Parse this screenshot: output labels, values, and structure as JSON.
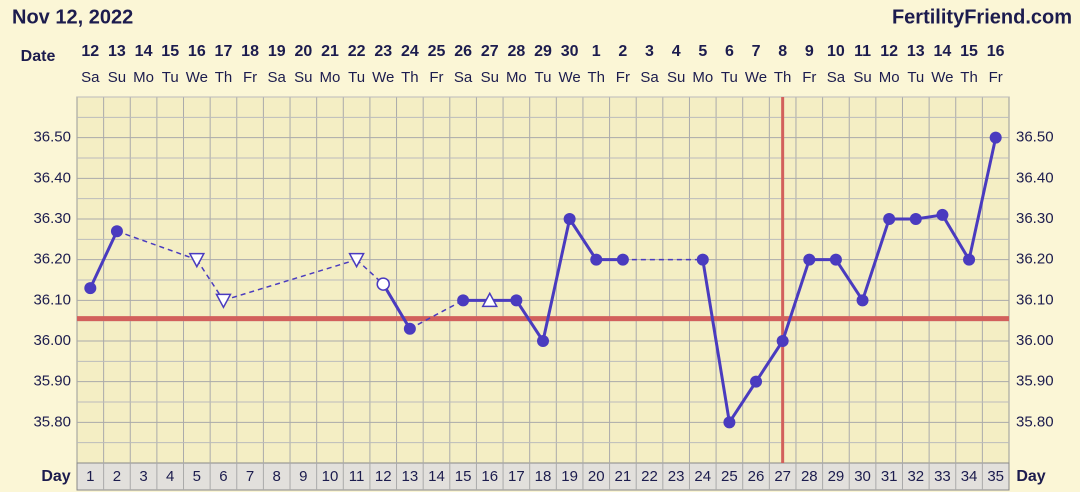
{
  "header": {
    "date": "Nov 12, 2022",
    "site": "FertilityFriend.com"
  },
  "chart_data": {
    "type": "line",
    "date_label": "Date",
    "day_label": "Day",
    "categories": [
      1,
      2,
      3,
      4,
      5,
      6,
      7,
      8,
      9,
      10,
      11,
      12,
      13,
      14,
      15,
      16,
      17,
      18,
      19,
      20,
      21,
      22,
      23,
      24,
      25,
      26,
      27,
      28,
      29,
      30,
      31,
      32,
      33,
      34,
      35
    ],
    "dates": [
      12,
      13,
      14,
      15,
      16,
      17,
      18,
      19,
      20,
      21,
      22,
      23,
      24,
      25,
      26,
      27,
      28,
      29,
      30,
      1,
      2,
      3,
      4,
      5,
      6,
      7,
      8,
      9,
      10,
      11,
      12,
      13,
      14,
      15,
      16
    ],
    "weekdays": [
      "Sa",
      "Su",
      "Mo",
      "Tu",
      "We",
      "Th",
      "Fr",
      "Sa",
      "Su",
      "Mo",
      "Tu",
      "We",
      "Th",
      "Fr",
      "Sa",
      "Su",
      "Mo",
      "Tu",
      "We",
      "Th",
      "Fr",
      "Sa",
      "Su",
      "Mo",
      "Tu",
      "We",
      "Th",
      "Fr",
      "Sa",
      "Su",
      "Mo",
      "Tu",
      "We",
      "Th",
      "Fr"
    ],
    "values": [
      36.13,
      36.27,
      null,
      null,
      36.2,
      36.1,
      null,
      null,
      null,
      null,
      36.2,
      36.14,
      36.03,
      null,
      36.1,
      36.1,
      36.1,
      36.0,
      36.3,
      36.2,
      36.2,
      null,
      null,
      36.2,
      35.8,
      35.9,
      36.0,
      36.2,
      36.2,
      36.1,
      36.3,
      36.3,
      36.31,
      36.2,
      36.5
    ],
    "markers": [
      "filled",
      "filled",
      null,
      null,
      "open-triangle-down",
      "open-triangle-down",
      null,
      null,
      null,
      null,
      "open-triangle-down",
      "open-circle",
      "filled",
      null,
      "filled",
      "open-triangle-up",
      "filled",
      "filled",
      "filled",
      "filled",
      "filled",
      null,
      null,
      "filled",
      "filled",
      "filled",
      "filled",
      "filled",
      "filled",
      "filled",
      "filled",
      "filled",
      "filled",
      "filled",
      "filled"
    ],
    "color": "#4a3bbf",
    "coverline": 36.055,
    "coverline_color": "#d2605c",
    "ovulation_day": 27,
    "ovulation_color": "#d2605c",
    "ylim": [
      35.7,
      36.6
    ],
    "yticks": [
      {
        "value": 35.8,
        "label": "35.80"
      },
      {
        "value": 35.9,
        "label": "35.90"
      },
      {
        "value": 36.0,
        "label": "36.00"
      },
      {
        "value": 36.1,
        "label": "36.10"
      },
      {
        "value": 36.2,
        "label": "36.20"
      },
      {
        "value": 36.3,
        "label": "36.30"
      },
      {
        "value": 36.4,
        "label": "36.40"
      },
      {
        "value": 36.5,
        "label": "36.50"
      }
    ],
    "grid": true,
    "minor_grid": true
  }
}
